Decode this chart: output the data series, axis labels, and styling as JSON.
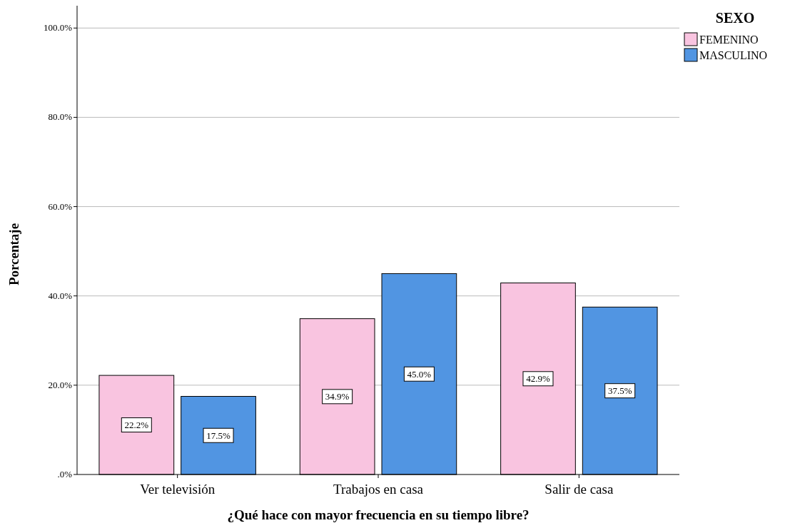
{
  "chart_data": {
    "type": "bar",
    "xlabel": "¿Qué hace con mayor frecuencia en su tiempo libre?",
    "ylabel": "Porcentaje",
    "legend_title": "SEXO",
    "legend": "top right",
    "categories": [
      "Ver televisión",
      "Trabajos en casa",
      "Salir de casa"
    ],
    "series": [
      {
        "name": "FEMENINO",
        "color": "#f9c4e0",
        "values": [
          22.2,
          34.9,
          42.9
        ],
        "value_labels": [
          "22.2%",
          "34.9%",
          "42.9%"
        ]
      },
      {
        "name": "MASCULINO",
        "color": "#5195e2",
        "values": [
          17.5,
          45.0,
          37.5
        ],
        "value_labels": [
          "17.5%",
          "45.0%",
          "37.5%"
        ]
      }
    ],
    "ylim": [
      0,
      105
    ],
    "yticks": [
      {
        "value": 0,
        "label": ".0%"
      },
      {
        "value": 20,
        "label": "20.0%"
      },
      {
        "value": 40,
        "label": "40.0%"
      },
      {
        "value": 60,
        "label": "60.0%"
      },
      {
        "value": 80,
        "label": "80.0%"
      },
      {
        "value": 100,
        "label": "100.0%"
      }
    ],
    "grid": "y"
  }
}
